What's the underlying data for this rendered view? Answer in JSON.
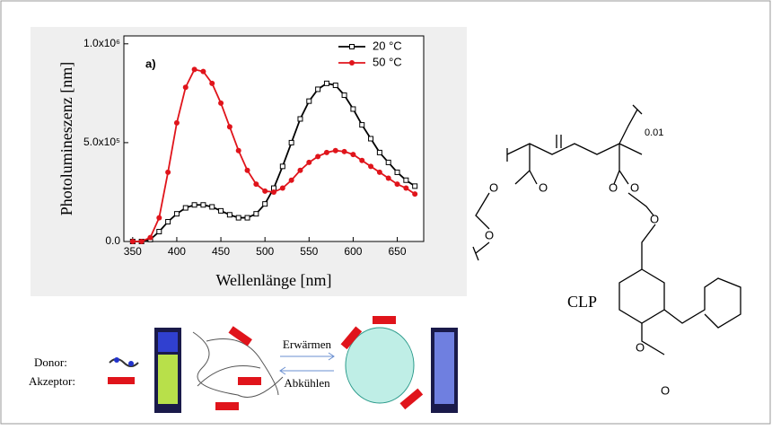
{
  "chart_data": {
    "type": "line",
    "annotation": "a)",
    "x_label": "Wellenlänge [nm]",
    "y_label": "Photolumineszenz [nm]",
    "x": [
      350,
      360,
      370,
      380,
      390,
      400,
      410,
      420,
      430,
      440,
      450,
      460,
      470,
      480,
      490,
      500,
      510,
      520,
      530,
      540,
      550,
      560,
      570,
      580,
      590,
      600,
      610,
      620,
      630,
      640,
      650,
      660,
      670
    ],
    "series": [
      {
        "name": "20 °C",
        "color": "#000000",
        "marker": "square",
        "values": [
          0,
          0,
          10000,
          50000,
          100000,
          140000,
          170000,
          185000,
          185000,
          175000,
          155000,
          135000,
          120000,
          120000,
          140000,
          190000,
          270000,
          380000,
          500000,
          620000,
          710000,
          770000,
          800000,
          790000,
          740000,
          670000,
          590000,
          520000,
          450000,
          400000,
          350000,
          310000,
          280000
        ]
      },
      {
        "name": "50 °C",
        "color": "#e0141b",
        "marker": "circle",
        "values": [
          0,
          0,
          20000,
          120000,
          350000,
          600000,
          780000,
          870000,
          860000,
          800000,
          700000,
          580000,
          460000,
          360000,
          290000,
          255000,
          250000,
          270000,
          310000,
          360000,
          400000,
          430000,
          450000,
          460000,
          455000,
          440000,
          410000,
          380000,
          350000,
          320000,
          290000,
          270000,
          240000
        ]
      }
    ],
    "xlim": [
      340,
      680
    ],
    "xticks": [
      350,
      400,
      450,
      500,
      550,
      600,
      650
    ],
    "ylim": [
      0,
      1040000
    ],
    "yticks": [
      {
        "value": 0,
        "label": "0.0"
      },
      {
        "value": 500000,
        "label": "5.0x10⁵"
      },
      {
        "value": 1000000,
        "label": "1.0x10⁶"
      }
    ],
    "legend": "upper right"
  },
  "scheme": {
    "donor": "Donor:",
    "acceptor": "Akzeptor:",
    "heat": "Erwärmen",
    "cool": "Abkühlen"
  },
  "structure": {
    "label": "CLP",
    "subscript": "0.01",
    "atoms": [
      "O",
      "O",
      "O",
      "O",
      "O",
      "O",
      "O",
      "O"
    ]
  }
}
